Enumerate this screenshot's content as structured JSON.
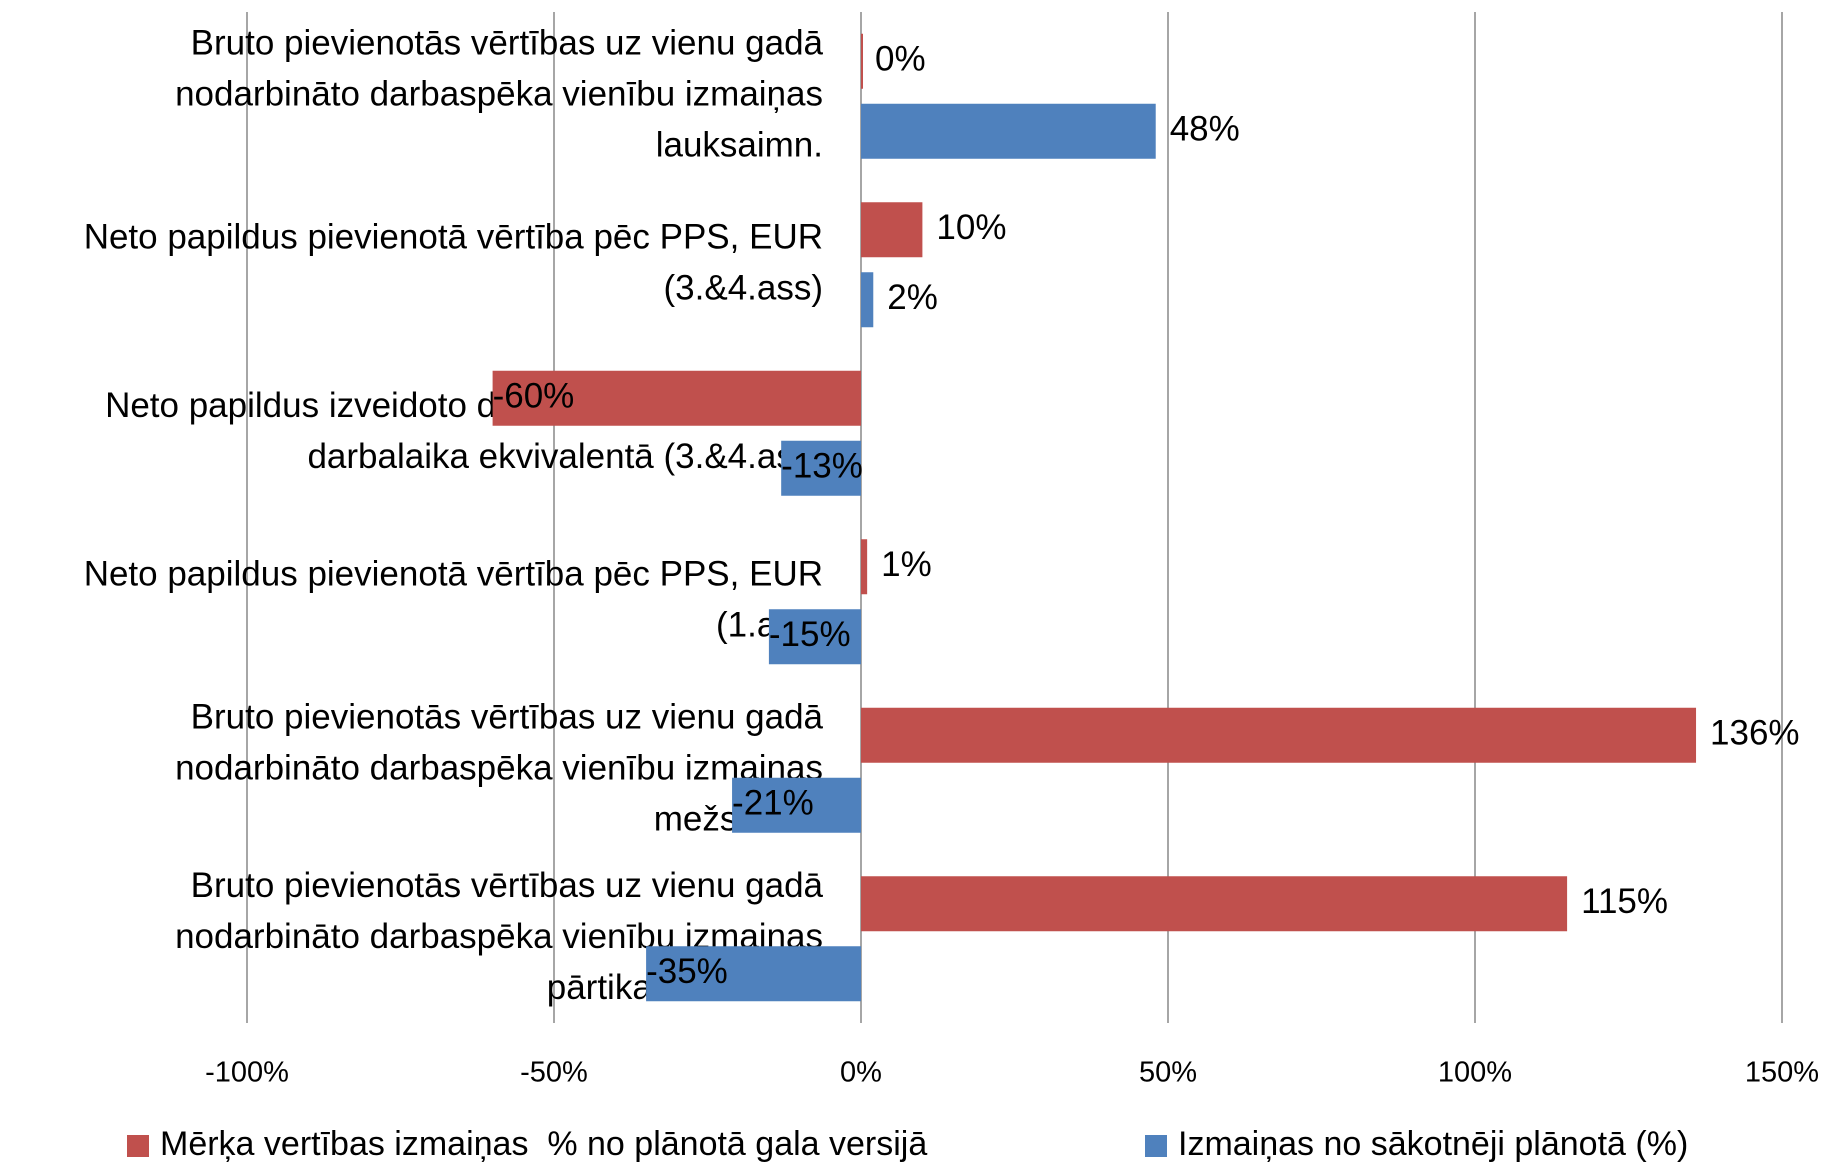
{
  "chart_data": {
    "type": "bar",
    "orientation": "horizontal",
    "categories": [
      [
        "Bruto pievienotās vērtības uz vienu gadā",
        "nodarbināto darbaspēka vienību izmaiņas",
        "lauksaimn."
      ],
      [
        "Neto papildus pievienotā vērtība pēc PPS, EUR",
        "(3.&4.ass)"
      ],
      [
        "Neto papildus izveidoto darbavietu skaits pilnā",
        "darbalaika ekvivalentā (3.&4.ass)"
      ],
      [
        "Neto papildus pievienotā vērtība pēc PPS, EUR",
        "(1.ass)"
      ],
      [
        "Bruto pievienotās vērtības uz vienu gadā",
        "nodarbināto darbaspēka vienību izmaiņas",
        "mežsaimn."
      ],
      [
        "Bruto pievienotās vērtības uz vienu gadā",
        "nodarbināto darbaspēka vienību izmaiņas",
        "pārtikas ražošanā"
      ]
    ],
    "series": [
      {
        "name": "Mērķa vertības izmaiņas  % no plānotā gala versijā",
        "color": "#c0504d",
        "values": [
          0,
          10,
          -60,
          1,
          136,
          115
        ],
        "value_labels": [
          "0%",
          "10%",
          "-60%",
          "1%",
          "136%",
          "115%"
        ]
      },
      {
        "name": "Izmaiņas no sākotnēji plānotā (%)",
        "color": "#4f81bd",
        "values": [
          48,
          2,
          -13,
          -15,
          -21,
          -35
        ],
        "value_labels": [
          "48%",
          "2%",
          "-13%",
          "-15%",
          "-21%",
          "-35%"
        ]
      }
    ],
    "negative_label_color": "#ff0000",
    "xlim": [
      -100,
      150
    ],
    "xticks": [
      {
        "value": -100,
        "label": "-100%"
      },
      {
        "value": -50,
        "label": "-50%"
      },
      {
        "value": 0,
        "label": "0%"
      },
      {
        "value": 50,
        "label": "50%"
      },
      {
        "value": 100,
        "label": "100%"
      },
      {
        "value": 150,
        "label": "150%"
      }
    ],
    "grid": true,
    "legend": "bottom"
  }
}
